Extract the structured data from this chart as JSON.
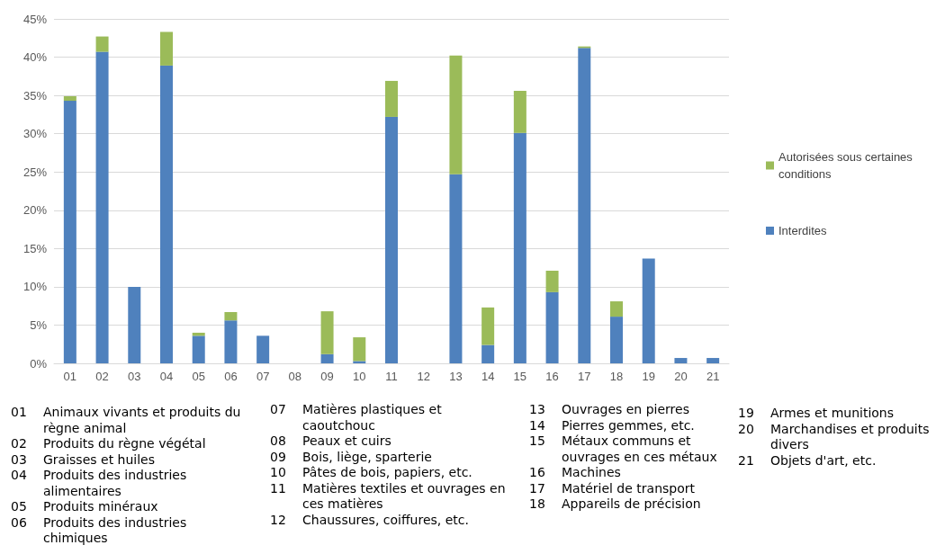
{
  "chart_data": {
    "type": "bar",
    "stacked": true,
    "categories": [
      "01",
      "02",
      "03",
      "04",
      "05",
      "06",
      "07",
      "08",
      "09",
      "10",
      "11",
      "12",
      "13",
      "14",
      "15",
      "16",
      "17",
      "18",
      "19",
      "20",
      "21"
    ],
    "series": [
      {
        "name": "Interdites",
        "color": "#4f81bd",
        "values": [
          34.3,
          40.7,
          10.0,
          38.9,
          3.6,
          5.6,
          3.6,
          0,
          1.2,
          0.3,
          32.2,
          0,
          24.7,
          2.4,
          30.1,
          9.3,
          41.2,
          6.1,
          13.7,
          0.7,
          0.7
        ]
      },
      {
        "name": "Autorisées sous certaines conditions",
        "color": "#9bbb59",
        "values": [
          0.6,
          2.0,
          0,
          4.4,
          0.4,
          1.1,
          0,
          0,
          5.6,
          3.1,
          4.7,
          0,
          15.5,
          4.9,
          5.5,
          2.8,
          0.2,
          2.0,
          0,
          0,
          0
        ]
      }
    ],
    "ylim": [
      0,
      45
    ],
    "yticks": [
      {
        "value": 0,
        "label": "0%"
      },
      {
        "value": 5,
        "label": "5%"
      },
      {
        "value": 10,
        "label": "10%"
      },
      {
        "value": 15,
        "label": "15%"
      },
      {
        "value": 20,
        "label": "20%"
      },
      {
        "value": 25,
        "label": "25%"
      },
      {
        "value": 30,
        "label": "30%"
      },
      {
        "value": 35,
        "label": "35%"
      },
      {
        "value": 40,
        "label": "40%"
      },
      {
        "value": 45,
        "label": "45%"
      }
    ],
    "grid": "y",
    "legend": "right",
    "annotations": [
      "01 Animaux vivants et produits du règne animal",
      "02 Produits du règne végétal",
      "03 Graisses et huiles",
      "04 Produits des industries alimentaires",
      "05 Produits minéraux",
      "06 Produits des industries chimiques",
      "07 Matières plastiques et caoutchouc",
      "08 Peaux et cuirs",
      "09 Bois, liège, sparterie",
      "10 Pâtes de bois, papiers, etc.",
      "11 Matières textiles et ouvrages en ces matières",
      "12 Chaussures, coiffures, etc.",
      "13 Ouvrages en pierres",
      "14 Pierres gemmes, etc.",
      "15 Métaux communs et ouvrages en ces métaux",
      "16 Machines",
      "17 Matériel de transport",
      "18 Appareils de précision",
      "19 Armes et munitions",
      "20 Marchandises et produits divers",
      "21 Objets d'art, etc."
    ]
  }
}
